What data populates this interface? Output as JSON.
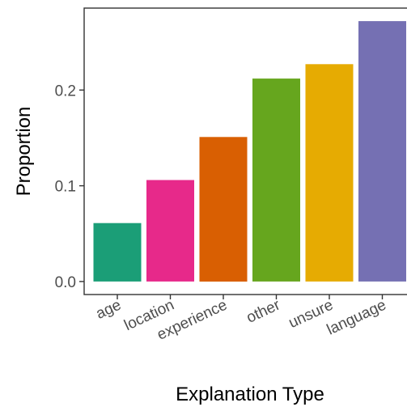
{
  "chart_data": {
    "type": "bar",
    "title": "",
    "xlabel": "Explanation Type",
    "ylabel": "Proportion",
    "categories": [
      "age",
      "location",
      "experience",
      "other",
      "unsure",
      "language"
    ],
    "values": [
      0.061,
      0.106,
      0.151,
      0.212,
      0.227,
      0.272
    ],
    "colors": [
      "#1b9e77",
      "#e7298a",
      "#d95f02",
      "#66a61e",
      "#e6ab02",
      "#7570b3"
    ],
    "yticks": [
      0.0,
      0.1,
      0.2
    ],
    "ytick_labels": [
      "0.0",
      "0.1",
      "0.2"
    ],
    "ylim": [
      -0.0136,
      0.2856
    ],
    "grid": false,
    "legend": "none"
  }
}
